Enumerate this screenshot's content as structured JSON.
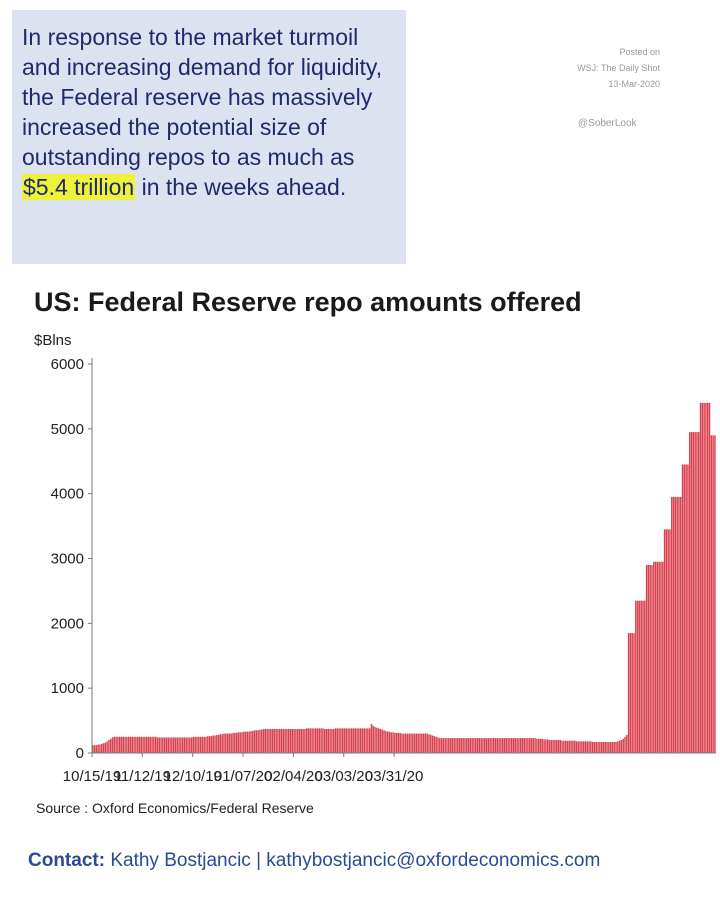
{
  "callout": {
    "text_before": "In response to the market turmoil and increasing demand for liquidity, the Federal reserve has massively increased the potential size of outstanding repos to as much as ",
    "highlight": "$5.4 trillion",
    "text_after": " in the weeks ahead."
  },
  "credit": {
    "line1": "Posted on",
    "line2": "WSJ: The Daily Shot",
    "line3": "13-Mar-2020",
    "handle": "@SoberLook"
  },
  "source": "Source : Oxford Economics/Federal Reserve",
  "contact": {
    "label": "Contact:",
    "text": " Kathy Bostjancic | kathybostjancic@oxfordeconomics.com"
  },
  "chart_data": {
    "type": "bar",
    "title": "US: Federal Reserve repo amounts offered",
    "ylabel": "$Blns",
    "ylim": [
      0,
      6000
    ],
    "yticks": [
      0,
      1000,
      2000,
      3000,
      4000,
      5000,
      6000
    ],
    "grid": false,
    "bar_color": "#d9404d",
    "x_tick_labels": [
      "10/15/19",
      "11/12/19",
      "12/10/19",
      "01/07/20",
      "02/04/20",
      "03/03/20",
      "03/31/20"
    ],
    "x_tick_positions": [
      0,
      28,
      56,
      84,
      112,
      140,
      168
    ],
    "values": [
      120,
      120,
      120,
      130,
      130,
      140,
      150,
      160,
      180,
      200,
      220,
      240,
      250,
      250,
      250,
      250,
      250,
      250,
      250,
      250,
      250,
      250,
      250,
      250,
      250,
      250,
      250,
      250,
      250,
      250,
      250,
      250,
      250,
      250,
      250,
      250,
      240,
      240,
      240,
      240,
      240,
      240,
      240,
      240,
      240,
      240,
      240,
      240,
      240,
      240,
      240,
      240,
      240,
      240,
      240,
      240,
      250,
      250,
      250,
      250,
      250,
      250,
      250,
      250,
      260,
      260,
      260,
      270,
      270,
      280,
      280,
      290,
      290,
      300,
      300,
      300,
      300,
      300,
      310,
      310,
      310,
      320,
      320,
      320,
      330,
      330,
      330,
      330,
      340,
      340,
      350,
      350,
      350,
      360,
      360,
      370,
      370,
      370,
      370,
      370,
      370,
      370,
      370,
      370,
      370,
      370,
      370,
      370,
      370,
      370,
      370,
      370,
      370,
      370,
      370,
      370,
      370,
      370,
      370,
      380,
      380,
      380,
      380,
      380,
      380,
      380,
      380,
      380,
      380,
      370,
      370,
      370,
      370,
      370,
      370,
      380,
      380,
      380,
      380,
      380,
      380,
      380,
      380,
      380,
      380,
      380,
      380,
      380,
      380,
      380,
      380,
      380,
      380,
      380,
      380,
      450,
      420,
      400,
      390,
      380,
      370,
      360,
      350,
      340,
      330,
      330,
      320,
      320,
      310,
      310,
      310,
      310,
      300,
      300,
      300,
      300,
      300,
      300,
      300,
      300,
      300,
      300,
      300,
      300,
      300,
      300,
      300,
      290,
      280,
      270,
      260,
      250,
      240,
      230,
      230,
      230,
      230,
      230,
      230,
      230,
      230,
      230,
      230,
      230,
      230,
      230,
      230,
      230,
      230,
      230,
      230,
      230,
      230,
      230,
      230,
      230,
      230,
      230,
      230,
      230,
      230,
      230,
      230,
      230,
      230,
      230,
      230,
      230,
      230,
      230,
      230,
      230,
      230,
      230,
      230,
      230,
      230,
      230,
      230,
      230,
      230,
      230,
      230,
      230,
      230,
      230,
      230,
      220,
      220,
      220,
      220,
      210,
      210,
      210,
      200,
      200,
      200,
      200,
      200,
      200,
      200,
      190,
      190,
      190,
      190,
      190,
      190,
      190,
      190,
      180,
      180,
      180,
      180,
      180,
      180,
      180,
      180,
      180,
      170,
      170,
      170,
      170,
      170,
      170,
      170,
      170,
      170,
      170,
      170,
      170,
      170,
      170,
      180,
      190,
      200,
      220,
      250,
      280,
      1850,
      1850,
      1850,
      1850,
      2350,
      2350,
      2350,
      2350,
      2350,
      2350,
      2900,
      2900,
      2900,
      2900,
      2950,
      2950,
      2950,
      2950,
      2950,
      2950,
      3450,
      3450,
      3450,
      3450,
      3950,
      3950,
      3950,
      3950,
      3950,
      3950,
      4450,
      4450,
      4450,
      4450,
      4950,
      4950,
      4950,
      4950,
      4950,
      4950,
      5400,
      5400,
      5400,
      5400,
      5400,
      5400,
      4900,
      4900,
      4900
    ]
  }
}
